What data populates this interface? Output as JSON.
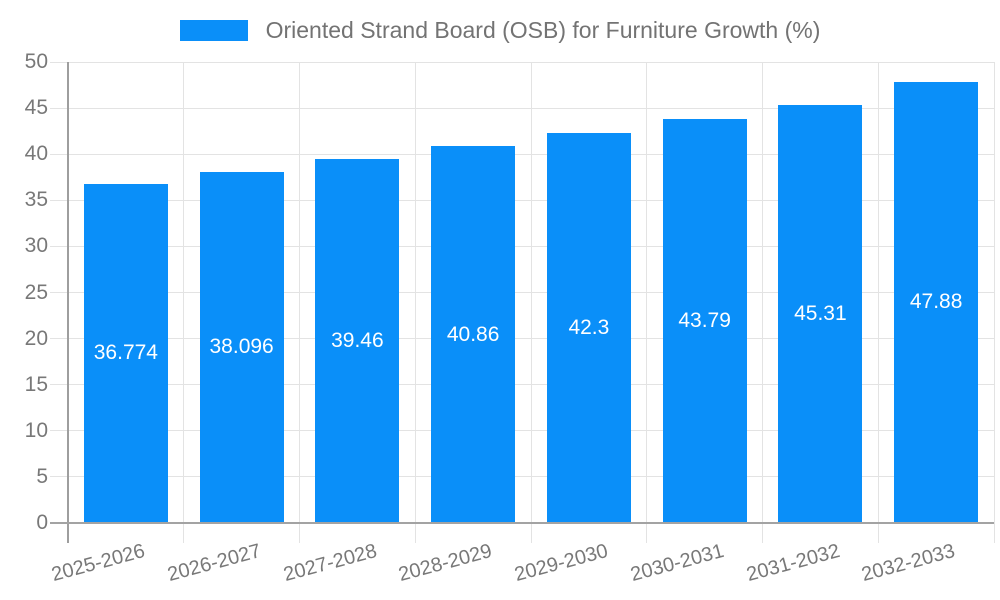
{
  "chart_data": {
    "type": "bar",
    "title": "Oriented Strand Board (OSB) for Furniture Growth (%)",
    "legend": {
      "position": "top-center",
      "label": "Oriented Strand Board (OSB) for Furniture Growth (%)"
    },
    "categories": [
      "2025-2026",
      "2026-2027",
      "2027-2028",
      "2028-2029",
      "2029-2030",
      "2030-2031",
      "2031-2032",
      "2032-2033"
    ],
    "values": [
      36.774,
      38.096,
      39.46,
      40.86,
      42.3,
      43.79,
      45.31,
      47.88
    ],
    "value_labels": [
      "36.774",
      "38.096",
      "39.46",
      "40.86",
      "42.3",
      "43.79",
      "45.31",
      "47.88"
    ],
    "xlabel": "",
    "ylabel": "",
    "ylim": [
      0,
      50
    ],
    "ytick_step": 5,
    "yticks": [
      0,
      5,
      10,
      15,
      20,
      25,
      30,
      35,
      40,
      45,
      50
    ],
    "ytick_labels": [
      "0",
      "5",
      "10",
      "15",
      "20",
      "25",
      "30",
      "35",
      "40",
      "45",
      "50"
    ],
    "grid": true,
    "colors": {
      "bar": "#0a8ff9",
      "grid": "#e3e3e3",
      "axis": "#9e9e9e",
      "text": "#787878",
      "legend_text": "#737373",
      "bar_label": "#ffffff",
      "background": "#ffffff"
    }
  }
}
